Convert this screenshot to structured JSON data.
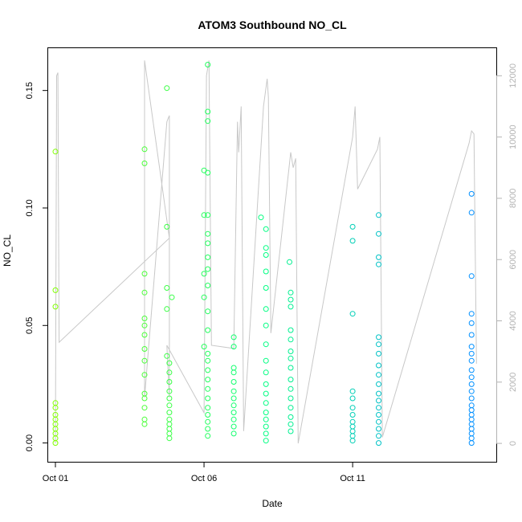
{
  "chart_data": {
    "type": "scatter",
    "title": "ATOM3 Southbound NO_CL",
    "xlabel": "Date",
    "ylabel": "NO_CL",
    "x_axis": {
      "kind": "date",
      "range": [
        "2016-09-30T18:10",
        "2016-10-15T20:00"
      ],
      "tick_values": [
        "2016-10-01",
        "2016-10-06",
        "2016-10-11"
      ],
      "tick_labels": [
        "Oct 01",
        "Oct 06",
        "Oct 11"
      ]
    },
    "y_axis": {
      "range": [
        -0.008,
        0.168
      ],
      "tick_values": [
        0.0,
        0.05,
        0.1,
        0.15
      ],
      "tick_labels": [
        "0.00",
        "0.05",
        "0.10",
        "0.15"
      ]
    },
    "y2_axis": {
      "range": [
        -600,
        12900
      ],
      "tick_values": [
        0,
        2000,
        4000,
        6000,
        8000,
        10000,
        12000
      ],
      "tick_labels": [
        "0",
        "2000",
        "4000",
        "6000",
        "8000",
        "10000",
        "12000"
      ],
      "color": "#b3b3b3"
    },
    "grid": false,
    "legend": "none",
    "colors": {
      "points_start": "#80ff00",
      "points_mid": "#00ff80",
      "points_end": "#0090ff",
      "altitude_line": "#c8c8c8"
    },
    "series": [
      {
        "marker": "open-circle",
        "axis": "left",
        "color_by": "time",
        "points": [
          [
            "2016-10-01T00:00",
            0.124
          ],
          [
            "2016-10-01T00:00",
            0.065
          ],
          [
            "2016-10-01T00:00",
            0.058
          ],
          [
            "2016-10-01T00:00",
            0.017
          ],
          [
            "2016-10-01T00:00",
            0.015
          ],
          [
            "2016-10-01T00:00",
            0.012
          ],
          [
            "2016-10-01T00:00",
            0.01
          ],
          [
            "2016-10-01T00:00",
            0.008
          ],
          [
            "2016-10-01T00:00",
            0.006
          ],
          [
            "2016-10-01T00:00",
            0.004
          ],
          [
            "2016-10-01T00:00",
            0.002
          ],
          [
            "2016-10-01T00:00",
            0.0
          ],
          [
            "2016-10-04T00:00",
            0.125
          ],
          [
            "2016-10-04T00:00",
            0.119
          ],
          [
            "2016-10-04T00:00",
            0.072
          ],
          [
            "2016-10-04T00:00",
            0.064
          ],
          [
            "2016-10-04T00:00",
            0.053
          ],
          [
            "2016-10-04T00:00",
            0.05
          ],
          [
            "2016-10-04T00:00",
            0.046
          ],
          [
            "2016-10-04T00:00",
            0.04
          ],
          [
            "2016-10-04T00:00",
            0.035
          ],
          [
            "2016-10-04T00:00",
            0.029
          ],
          [
            "2016-10-04T00:00",
            0.021
          ],
          [
            "2016-10-04T00:00",
            0.019
          ],
          [
            "2016-10-04T00:00",
            0.015
          ],
          [
            "2016-10-04T00:00",
            0.01
          ],
          [
            "2016-10-04T00:00",
            0.008
          ],
          [
            "2016-10-04T18:00",
            0.151
          ],
          [
            "2016-10-04T18:00",
            0.092
          ],
          [
            "2016-10-04T18:00",
            0.066
          ],
          [
            "2016-10-04T18:00",
            0.057
          ],
          [
            "2016-10-04T22:00",
            0.062
          ],
          [
            "2016-10-04T18:00",
            0.037
          ],
          [
            "2016-10-04T20:00",
            0.034
          ],
          [
            "2016-10-04T20:00",
            0.03
          ],
          [
            "2016-10-04T20:00",
            0.026
          ],
          [
            "2016-10-04T20:00",
            0.022
          ],
          [
            "2016-10-04T20:00",
            0.019
          ],
          [
            "2016-10-04T20:00",
            0.016
          ],
          [
            "2016-10-04T20:00",
            0.013
          ],
          [
            "2016-10-04T20:00",
            0.01
          ],
          [
            "2016-10-04T20:00",
            0.008
          ],
          [
            "2016-10-04T20:00",
            0.006
          ],
          [
            "2016-10-04T20:00",
            0.004
          ],
          [
            "2016-10-04T20:00",
            0.002
          ],
          [
            "2016-10-06T03:00",
            0.161
          ],
          [
            "2016-10-06T03:00",
            0.141
          ],
          [
            "2016-10-06T03:00",
            0.137
          ],
          [
            "2016-10-06T00:00",
            0.116
          ],
          [
            "2016-10-06T03:00",
            0.115
          ],
          [
            "2016-10-06T00:00",
            0.097
          ],
          [
            "2016-10-06T03:00",
            0.097
          ],
          [
            "2016-10-06T03:00",
            0.089
          ],
          [
            "2016-10-06T03:00",
            0.085
          ],
          [
            "2016-10-06T03:00",
            0.079
          ],
          [
            "2016-10-06T03:00",
            0.074
          ],
          [
            "2016-10-06T00:00",
            0.072
          ],
          [
            "2016-10-06T03:00",
            0.067
          ],
          [
            "2016-10-06T00:00",
            0.062
          ],
          [
            "2016-10-06T03:00",
            0.056
          ],
          [
            "2016-10-06T03:00",
            0.048
          ],
          [
            "2016-10-06T00:00",
            0.041
          ],
          [
            "2016-10-06T03:00",
            0.038
          ],
          [
            "2016-10-06T03:00",
            0.035
          ],
          [
            "2016-10-06T03:00",
            0.031
          ],
          [
            "2016-10-06T03:00",
            0.027
          ],
          [
            "2016-10-06T03:00",
            0.023
          ],
          [
            "2016-10-06T03:00",
            0.019
          ],
          [
            "2016-10-06T03:00",
            0.015
          ],
          [
            "2016-10-06T03:00",
            0.012
          ],
          [
            "2016-10-06T03:00",
            0.009
          ],
          [
            "2016-10-06T03:00",
            0.006
          ],
          [
            "2016-10-06T03:00",
            0.003
          ],
          [
            "2016-10-07T00:00",
            0.045
          ],
          [
            "2016-10-07T00:00",
            0.041
          ],
          [
            "2016-10-07T00:00",
            0.032
          ],
          [
            "2016-10-07T00:00",
            0.03
          ],
          [
            "2016-10-07T00:00",
            0.026
          ],
          [
            "2016-10-07T00:00",
            0.022
          ],
          [
            "2016-10-07T00:00",
            0.019
          ],
          [
            "2016-10-07T00:00",
            0.016
          ],
          [
            "2016-10-07T00:00",
            0.013
          ],
          [
            "2016-10-07T00:00",
            0.01
          ],
          [
            "2016-10-07T00:00",
            0.007
          ],
          [
            "2016-10-07T00:00",
            0.004
          ],
          [
            "2016-10-07T22:00",
            0.096
          ],
          [
            "2016-10-08T02:00",
            0.091
          ],
          [
            "2016-10-08T02:00",
            0.083
          ],
          [
            "2016-10-08T02:00",
            0.08
          ],
          [
            "2016-10-08T02:00",
            0.073
          ],
          [
            "2016-10-08T02:00",
            0.066
          ],
          [
            "2016-10-08T02:00",
            0.057
          ],
          [
            "2016-10-08T02:00",
            0.05
          ],
          [
            "2016-10-08T02:00",
            0.042
          ],
          [
            "2016-10-08T02:00",
            0.035
          ],
          [
            "2016-10-08T02:00",
            0.03
          ],
          [
            "2016-10-08T02:00",
            0.025
          ],
          [
            "2016-10-08T02:00",
            0.021
          ],
          [
            "2016-10-08T02:00",
            0.017
          ],
          [
            "2016-10-08T02:00",
            0.013
          ],
          [
            "2016-10-08T02:00",
            0.01
          ],
          [
            "2016-10-08T02:00",
            0.007
          ],
          [
            "2016-10-08T02:00",
            0.004
          ],
          [
            "2016-10-08T02:00",
            0.001
          ],
          [
            "2016-10-08T21:00",
            0.077
          ],
          [
            "2016-10-08T22:00",
            0.064
          ],
          [
            "2016-10-08T22:00",
            0.061
          ],
          [
            "2016-10-08T22:00",
            0.058
          ],
          [
            "2016-10-08T22:00",
            0.048
          ],
          [
            "2016-10-08T22:00",
            0.044
          ],
          [
            "2016-10-08T22:00",
            0.039
          ],
          [
            "2016-10-08T22:00",
            0.036
          ],
          [
            "2016-10-08T22:00",
            0.032
          ],
          [
            "2016-10-08T22:00",
            0.027
          ],
          [
            "2016-10-08T22:00",
            0.023
          ],
          [
            "2016-10-08T22:00",
            0.019
          ],
          [
            "2016-10-08T22:00",
            0.015
          ],
          [
            "2016-10-08T22:00",
            0.011
          ],
          [
            "2016-10-08T22:00",
            0.008
          ],
          [
            "2016-10-08T22:00",
            0.005
          ],
          [
            "2016-10-11T00:00",
            0.092
          ],
          [
            "2016-10-11T00:00",
            0.086
          ],
          [
            "2016-10-11T00:00",
            0.055
          ],
          [
            "2016-10-11T00:00",
            0.022
          ],
          [
            "2016-10-11T00:00",
            0.019
          ],
          [
            "2016-10-11T00:00",
            0.015
          ],
          [
            "2016-10-11T00:00",
            0.012
          ],
          [
            "2016-10-11T00:00",
            0.009
          ],
          [
            "2016-10-11T00:00",
            0.007
          ],
          [
            "2016-10-11T00:00",
            0.005
          ],
          [
            "2016-10-11T00:00",
            0.003
          ],
          [
            "2016-10-11T00:00",
            0.001
          ],
          [
            "2016-10-11T21:00",
            0.097
          ],
          [
            "2016-10-11T21:00",
            0.089
          ],
          [
            "2016-10-11T21:00",
            0.079
          ],
          [
            "2016-10-11T21:00",
            0.076
          ],
          [
            "2016-10-11T21:00",
            0.045
          ],
          [
            "2016-10-11T21:00",
            0.042
          ],
          [
            "2016-10-11T21:00",
            0.038
          ],
          [
            "2016-10-11T21:00",
            0.033
          ],
          [
            "2016-10-11T21:00",
            0.029
          ],
          [
            "2016-10-11T21:00",
            0.025
          ],
          [
            "2016-10-11T21:00",
            0.021
          ],
          [
            "2016-10-11T21:00",
            0.018
          ],
          [
            "2016-10-11T21:00",
            0.015
          ],
          [
            "2016-10-11T21:00",
            0.012
          ],
          [
            "2016-10-11T21:00",
            0.009
          ],
          [
            "2016-10-11T21:00",
            0.006
          ],
          [
            "2016-10-11T21:00",
            0.003
          ],
          [
            "2016-10-11T21:00",
            0.0
          ],
          [
            "2016-10-15T00:00",
            0.106
          ],
          [
            "2016-10-15T00:00",
            0.098
          ],
          [
            "2016-10-15T00:00",
            0.071
          ],
          [
            "2016-10-15T00:00",
            0.055
          ],
          [
            "2016-10-15T00:00",
            0.051
          ],
          [
            "2016-10-15T00:00",
            0.046
          ],
          [
            "2016-10-15T00:00",
            0.041
          ],
          [
            "2016-10-15T00:00",
            0.038
          ],
          [
            "2016-10-15T00:00",
            0.035
          ],
          [
            "2016-10-15T00:00",
            0.031
          ],
          [
            "2016-10-15T00:00",
            0.028
          ],
          [
            "2016-10-15T00:00",
            0.025
          ],
          [
            "2016-10-15T00:00",
            0.022
          ],
          [
            "2016-10-15T00:00",
            0.019
          ],
          [
            "2016-10-15T00:00",
            0.016
          ],
          [
            "2016-10-15T00:00",
            0.014
          ],
          [
            "2016-10-15T00:00",
            0.012
          ],
          [
            "2016-10-15T00:00",
            0.01
          ],
          [
            "2016-10-15T00:00",
            0.008
          ],
          [
            "2016-10-15T00:00",
            0.006
          ],
          [
            "2016-10-15T00:00",
            0.004
          ],
          [
            "2016-10-15T00:00",
            0.002
          ],
          [
            "2016-10-15T00:00",
            0.0
          ]
        ]
      },
      {
        "marker": "line",
        "axis": "right",
        "points": [
          [
            "2016-10-01T00:00",
            0
          ],
          [
            "2016-10-01T01:00",
            12000
          ],
          [
            "2016-10-01T02:00",
            12100
          ],
          [
            "2016-10-01T03:00",
            3300
          ],
          [
            "2016-10-04T20:00",
            6700
          ],
          [
            "2016-10-04T00:00",
            12500
          ],
          [
            "2016-10-04T00:00",
            6800
          ],
          [
            "2016-10-04T00:00",
            1500
          ],
          [
            "2016-10-04T18:00",
            10500
          ],
          [
            "2016-10-04T19:00",
            10600
          ],
          [
            "2016-10-04T20:00",
            10700
          ],
          [
            "2016-10-04T20:00",
            1500
          ],
          [
            "2016-10-04T18:00",
            3200
          ],
          [
            "2016-10-06T00:00",
            1000
          ],
          [
            "2016-10-06T02:00",
            12000
          ],
          [
            "2016-10-06T04:00",
            12500
          ],
          [
            "2016-10-06T06:00",
            3200
          ],
          [
            "2016-10-07T00:00",
            3100
          ],
          [
            "2016-10-07T03:00",
            10500
          ],
          [
            "2016-10-07T04:00",
            9500
          ],
          [
            "2016-10-07T06:00",
            11000
          ],
          [
            "2016-10-07T08:00",
            400
          ],
          [
            "2016-10-08T00:00",
            11000
          ],
          [
            "2016-10-08T03:00",
            11900
          ],
          [
            "2016-10-08T04:00",
            11300
          ],
          [
            "2016-10-08T06:00",
            3600
          ],
          [
            "2016-10-08T22:00",
            9500
          ],
          [
            "2016-10-09T00:00",
            9000
          ],
          [
            "2016-10-09T02:00",
            9300
          ],
          [
            "2016-10-09T04:00",
            0
          ],
          [
            "2016-10-11T00:00",
            10000
          ],
          [
            "2016-10-11T02:00",
            11000
          ],
          [
            "2016-10-11T04:00",
            8300
          ],
          [
            "2016-10-11T20:00",
            9600
          ],
          [
            "2016-10-11T22:00",
            10000
          ],
          [
            "2016-10-12T00:00",
            200
          ],
          [
            "2016-10-14T22:00",
            9800
          ],
          [
            "2016-10-15T00:00",
            10200
          ],
          [
            "2016-10-15T02:00",
            10100
          ],
          [
            "2016-10-15T04:00",
            2600
          ]
        ]
      }
    ]
  }
}
